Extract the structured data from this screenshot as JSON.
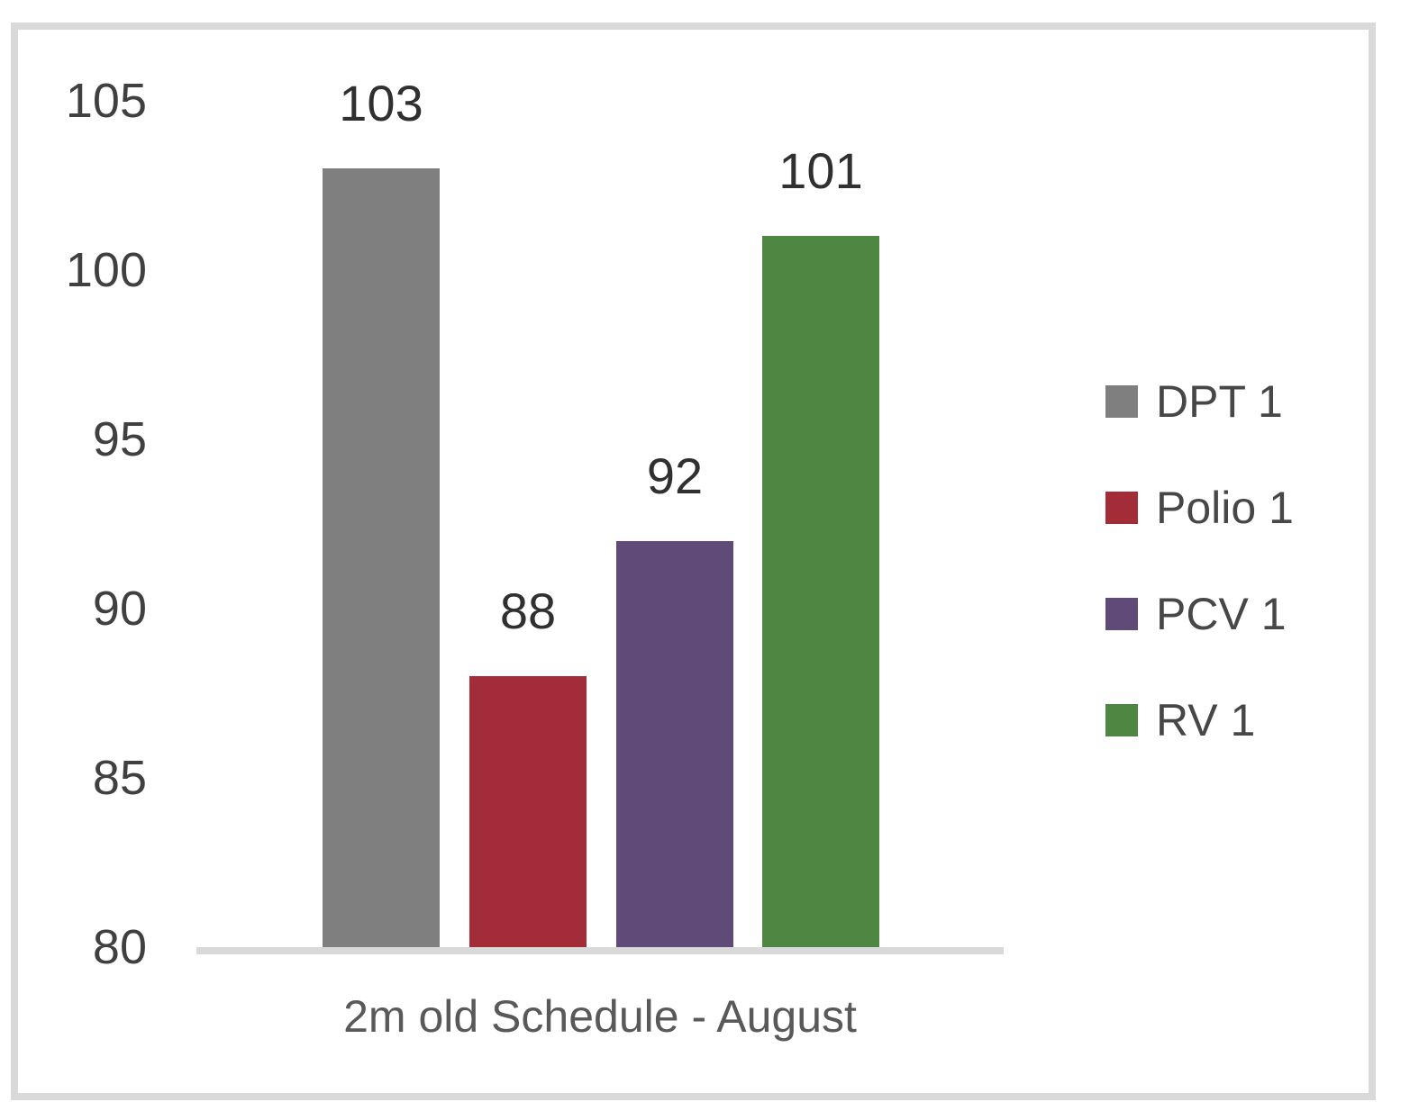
{
  "chart_data": {
    "type": "bar",
    "title": "",
    "xlabel": "2m old Schedule - August",
    "ylabel": "",
    "ylim": [
      80,
      105
    ],
    "yticks": [
      105,
      100,
      95,
      90,
      85,
      80
    ],
    "grid": false,
    "legend_position": "right",
    "data_labels_shown": true,
    "categories": [
      "2m old Schedule - August"
    ],
    "series": [
      {
        "name": "DPT 1",
        "value": 103,
        "color": "#7F7F7F"
      },
      {
        "name": "Polio 1",
        "value": 88,
        "color": "#A32C39"
      },
      {
        "name": "PCV 1",
        "value": 92,
        "color": "#5F4A78"
      },
      {
        "name": "RV 1",
        "value": 101,
        "color": "#4E8742"
      }
    ]
  },
  "colors": {
    "background": "#FFFFFF",
    "frame_border": "#D9D9D9",
    "axis_line": "#D9D9D9",
    "tick_text": "#404040",
    "value_label_text": "#303030",
    "legend_text": "#474747",
    "axis_title_text": "#595959"
  }
}
